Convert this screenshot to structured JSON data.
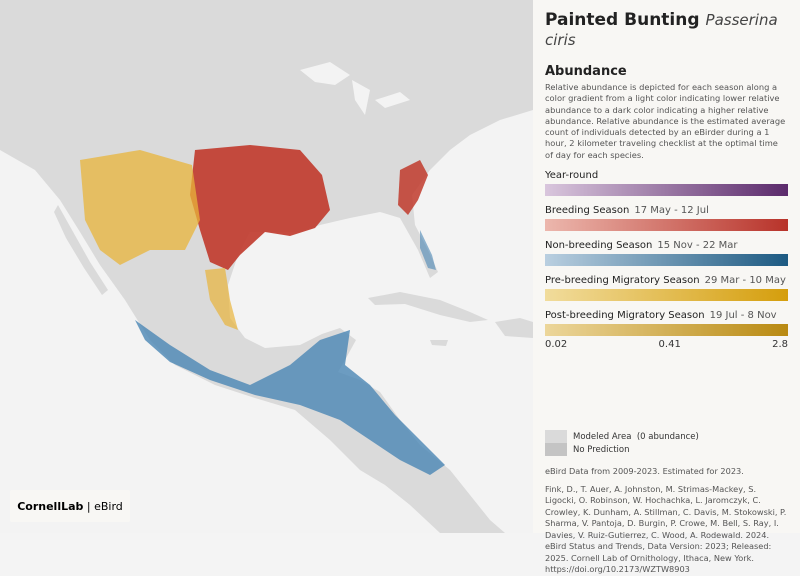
{
  "header": {
    "title": "Painted Bunting",
    "scientific_name": "Passerina ciris"
  },
  "legend": {
    "title": "Abundance",
    "description": "Relative abundance is depicted for each season along a color gradient from a light color indicating lower relative abundance to a dark color indicating a higher relative abundance. Relative abundance is the estimated average count of individuals detected by an eBirder during a 1 hour, 2 kilometer traveling checklist at the optimal time of day for each species.",
    "seasons": [
      {
        "name": "Year-round"
      },
      {
        "name": "Breeding Season",
        "dates": "17 May - 12 Jul"
      },
      {
        "name": "Non-breeding Season",
        "dates": "15 Nov - 22 Mar"
      },
      {
        "name": "Pre-breeding Migratory Season",
        "dates": "29 Mar - 10 May"
      },
      {
        "name": "Post-breeding Migratory Season",
        "dates": "19 Jul - 8 Nov"
      }
    ],
    "scale_labels": [
      "0.02",
      "0.41",
      "2.8"
    ],
    "modeled_area": "Modeled Area",
    "modeled_note": "(0 abundance)",
    "no_prediction": "No Prediction"
  },
  "data_info": "eBird Data from 2009-2023. Estimated for 2023.",
  "citation": "Fink, D., T. Auer, A. Johnston, M. Strimas-Mackey, S. Ligocki, O. Robinson, W. Hochachka, L. Jaromczyk, C. Crowley, K. Dunham, A. Stillman, C. Davis, M. Stokowski, P. Sharma, V. Pantoja, D. Burgin, P. Crowe, M. Bell, S. Ray, I. Davies, V. Ruiz-Gutierrez, C. Wood, A. Rodewald. 2024. eBird Status and Trends, Data Version: 2023; Released: 2025. Cornell Lab of Ornithology, Ithaca, New York. https://doi.org/10.2173/WZTW8903",
  "logo": {
    "cornell": "CornellLab",
    "ebird": "eBird"
  }
}
